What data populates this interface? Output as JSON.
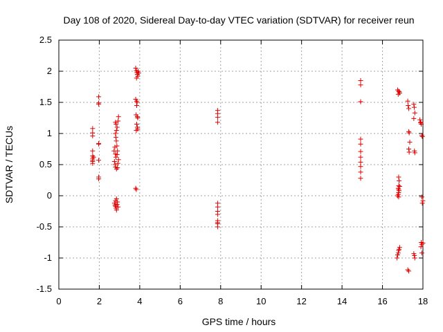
{
  "chart_data": {
    "type": "scatter",
    "title": "Day 108 of 2020, Sidereal Day-to-day VTEC variation (SDTVAR) for receiver reun",
    "xlabel": "GPS time / hours",
    "ylabel": "SDTVAR / TECUs",
    "xlim": [
      0,
      18
    ],
    "ylim": [
      -1.5,
      2.5
    ],
    "xticks": [
      0,
      2,
      4,
      6,
      8,
      10,
      12,
      14,
      16,
      18
    ],
    "yticks": [
      -1.5,
      -1,
      -0.5,
      0,
      0.5,
      1,
      1.5,
      2,
      2.5
    ],
    "xtick_labels": [
      "0",
      "2",
      "4",
      "6",
      "8",
      "10",
      "12",
      "14",
      "16",
      "18"
    ],
    "ytick_labels": [
      "-1.5",
      "-1",
      "-0.5",
      "0",
      "0.5",
      "1",
      "1.5",
      "2",
      "2.5"
    ],
    "grid": true,
    "marker": "+",
    "color": "#e00000",
    "series": [
      {
        "name": "SDTVAR",
        "points": [
          [
            1.67,
            1.08
          ],
          [
            1.67,
            1.01
          ],
          [
            1.67,
            0.96
          ],
          [
            1.67,
            0.72
          ],
          [
            1.67,
            0.64
          ],
          [
            1.67,
            0.6
          ],
          [
            1.67,
            0.57
          ],
          [
            1.67,
            0.55
          ],
          [
            1.67,
            0.52
          ],
          [
            1.72,
            0.62
          ],
          [
            1.97,
            1.59
          ],
          [
            1.97,
            1.49
          ],
          [
            1.97,
            1.47
          ],
          [
            1.97,
            0.84
          ],
          [
            1.97,
            0.83
          ],
          [
            1.97,
            0.57
          ],
          [
            1.97,
            0.3
          ],
          [
            1.97,
            0.27
          ],
          [
            2.73,
            0.72
          ],
          [
            2.77,
            0.78
          ],
          [
            2.8,
            0.67
          ],
          [
            2.82,
            0.62
          ],
          [
            2.75,
            0.55
          ],
          [
            2.78,
            0.5
          ],
          [
            2.8,
            0.46
          ],
          [
            2.85,
            0.43
          ],
          [
            2.9,
            0.45
          ],
          [
            2.92,
            0.52
          ],
          [
            2.95,
            0.58
          ],
          [
            2.88,
            0.66
          ],
          [
            2.9,
            0.72
          ],
          [
            2.87,
            0.8
          ],
          [
            2.84,
            0.88
          ],
          [
            2.82,
            0.94
          ],
          [
            2.8,
            1.0
          ],
          [
            2.85,
            1.05
          ],
          [
            2.88,
            1.1
          ],
          [
            2.83,
            1.15
          ],
          [
            2.8,
            1.18
          ],
          [
            2.93,
            1.2
          ],
          [
            2.95,
            1.27
          ],
          [
            2.75,
            -0.12
          ],
          [
            2.78,
            -0.15
          ],
          [
            2.8,
            -0.17
          ],
          [
            2.83,
            -0.2
          ],
          [
            2.85,
            -0.23
          ],
          [
            2.88,
            -0.14
          ],
          [
            2.9,
            -0.1
          ],
          [
            2.85,
            -0.05
          ],
          [
            2.8,
            -0.08
          ],
          [
            2.93,
            -0.18
          ],
          [
            3.8,
            2.05
          ],
          [
            3.83,
            2.01
          ],
          [
            3.86,
            1.98
          ],
          [
            3.88,
            1.95
          ],
          [
            3.9,
            1.92
          ],
          [
            3.84,
            1.89
          ],
          [
            3.92,
            2.0
          ],
          [
            3.95,
            1.97
          ],
          [
            3.8,
            1.55
          ],
          [
            3.84,
            1.52
          ],
          [
            3.87,
            1.5
          ],
          [
            3.85,
            1.45
          ],
          [
            3.82,
            1.3
          ],
          [
            3.88,
            1.27
          ],
          [
            3.9,
            1.25
          ],
          [
            3.85,
            1.15
          ],
          [
            3.88,
            1.1
          ],
          [
            3.9,
            1.07
          ],
          [
            3.83,
            1.05
          ],
          [
            3.8,
            0.12
          ],
          [
            3.83,
            0.1
          ],
          [
            7.85,
            1.37
          ],
          [
            7.85,
            1.32
          ],
          [
            7.85,
            1.26
          ],
          [
            7.85,
            1.18
          ],
          [
            7.85,
            -0.12
          ],
          [
            7.85,
            -0.18
          ],
          [
            7.85,
            -0.25
          ],
          [
            7.85,
            -0.3
          ],
          [
            7.85,
            -0.4
          ],
          [
            7.85,
            -0.43
          ],
          [
            7.85,
            -0.45
          ],
          [
            7.85,
            -0.5
          ],
          [
            14.92,
            1.85
          ],
          [
            14.92,
            1.78
          ],
          [
            14.92,
            1.51
          ],
          [
            14.92,
            1.51
          ],
          [
            14.92,
            0.91
          ],
          [
            14.92,
            0.83
          ],
          [
            14.92,
            0.71
          ],
          [
            14.92,
            0.62
          ],
          [
            14.92,
            0.54
          ],
          [
            14.92,
            0.47
          ],
          [
            14.92,
            0.38
          ],
          [
            14.92,
            0.28
          ],
          [
            16.75,
            1.7
          ],
          [
            16.8,
            1.68
          ],
          [
            16.83,
            1.67
          ],
          [
            16.85,
            1.65
          ],
          [
            16.78,
            1.63
          ],
          [
            16.8,
            0.3
          ],
          [
            16.82,
            0.24
          ],
          [
            16.8,
            0.16
          ],
          [
            16.78,
            0.12
          ],
          [
            16.8,
            0.1
          ],
          [
            16.82,
            0.08
          ],
          [
            16.8,
            0.05
          ],
          [
            16.78,
            0.02
          ],
          [
            16.75,
            0.0
          ],
          [
            16.85,
            0.15
          ],
          [
            16.8,
            -0.02
          ],
          [
            16.85,
            -0.83
          ],
          [
            16.82,
            -0.86
          ],
          [
            16.8,
            -0.88
          ],
          [
            16.78,
            -0.92
          ],
          [
            16.75,
            -0.95
          ],
          [
            16.72,
            -1.0
          ],
          [
            17.25,
            1.52
          ],
          [
            17.27,
            1.45
          ],
          [
            17.3,
            1.4
          ],
          [
            17.3,
            1.03
          ],
          [
            17.32,
            1.01
          ],
          [
            17.35,
            0.86
          ],
          [
            17.3,
            0.75
          ],
          [
            17.32,
            0.7
          ],
          [
            17.25,
            -1.19
          ],
          [
            17.3,
            -1.21
          ],
          [
            17.55,
            1.47
          ],
          [
            17.57,
            1.42
          ],
          [
            17.6,
            1.33
          ],
          [
            17.55,
            1.24
          ],
          [
            17.58,
            0.72
          ],
          [
            17.6,
            0.69
          ],
          [
            17.55,
            -0.93
          ],
          [
            17.58,
            -0.96
          ],
          [
            17.6,
            -1.0
          ],
          [
            17.85,
            1.22
          ],
          [
            17.88,
            1.18
          ],
          [
            17.9,
            1.17
          ],
          [
            17.92,
            1.15
          ],
          [
            17.95,
            0.97
          ],
          [
            17.97,
            0.95
          ],
          [
            17.95,
            -0.02
          ],
          [
            18.0,
            -0.08
          ],
          [
            17.97,
            -0.12
          ],
          [
            17.92,
            -0.75
          ],
          [
            17.95,
            -0.78
          ],
          [
            18.0,
            -0.76
          ],
          [
            17.9,
            -0.82
          ],
          [
            17.95,
            -0.92
          ]
        ]
      }
    ]
  }
}
